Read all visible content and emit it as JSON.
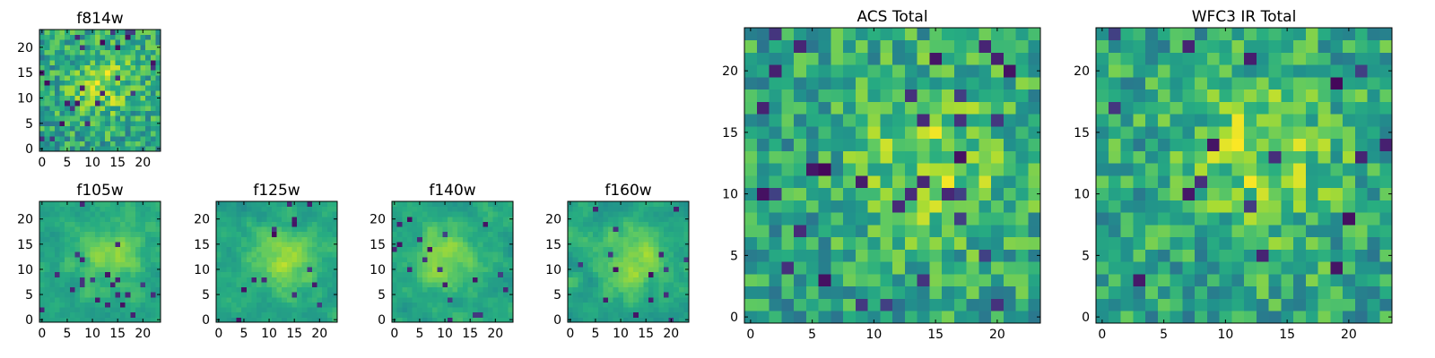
{
  "figure": {
    "background": "#ffffff",
    "colormap": [
      "#440154",
      "#3b528b",
      "#21918c",
      "#5ec962",
      "#fde725"
    ]
  },
  "chart_data": [
    {
      "id": "f814w",
      "type": "heatmap",
      "title": "f814w",
      "xlim": [
        0,
        24
      ],
      "ylim": [
        0,
        24
      ],
      "grid_size": [
        24,
        24
      ],
      "xticks": [
        0,
        5,
        10,
        15,
        20
      ],
      "yticks": [
        0,
        5,
        10,
        15,
        20
      ],
      "texture_seed": 11,
      "hotspot": [
        12,
        13
      ],
      "smooth": 0.0,
      "dark_fraction": 0.05
    },
    {
      "id": "f105w",
      "type": "heatmap",
      "title": "f105w",
      "xlim": [
        0,
        24
      ],
      "ylim": [
        0,
        24
      ],
      "grid_size": [
        24,
        24
      ],
      "xticks": [
        0,
        5,
        10,
        15,
        20
      ],
      "yticks": [
        0,
        5,
        10,
        15,
        20
      ],
      "texture_seed": 23,
      "hotspot": [
        14,
        13
      ],
      "smooth": 0.6,
      "dark_fraction": 0.03
    },
    {
      "id": "f125w",
      "type": "heatmap",
      "title": "f125w",
      "xlim": [
        0,
        24
      ],
      "ylim": [
        0,
        24
      ],
      "grid_size": [
        24,
        24
      ],
      "xticks": [
        0,
        5,
        10,
        15,
        20
      ],
      "yticks": [
        0,
        5,
        10,
        15,
        20
      ],
      "texture_seed": 37,
      "hotspot": [
        13,
        12
      ],
      "smooth": 0.6,
      "dark_fraction": 0.03
    },
    {
      "id": "f140w",
      "type": "heatmap",
      "title": "f140w",
      "xlim": [
        0,
        24
      ],
      "ylim": [
        0,
        24
      ],
      "grid_size": [
        24,
        24
      ],
      "xticks": [
        0,
        5,
        10,
        15,
        20
      ],
      "yticks": [
        0,
        5,
        10,
        15,
        20
      ],
      "texture_seed": 41,
      "hotspot": [
        10,
        12
      ],
      "smooth": 0.6,
      "dark_fraction": 0.03
    },
    {
      "id": "f160w",
      "type": "heatmap",
      "title": "f160w",
      "xlim": [
        0,
        24
      ],
      "ylim": [
        0,
        24
      ],
      "grid_size": [
        24,
        24
      ],
      "xticks": [
        0,
        5,
        10,
        15,
        20
      ],
      "yticks": [
        0,
        5,
        10,
        15,
        20
      ],
      "texture_seed": 53,
      "hotspot": [
        12,
        12
      ],
      "smooth": 0.6,
      "dark_fraction": 0.04
    },
    {
      "id": "acs",
      "type": "heatmap",
      "title": "ACS Total",
      "xlim": [
        0,
        24
      ],
      "ylim": [
        0,
        24
      ],
      "grid_size": [
        24,
        24
      ],
      "xticks": [
        0,
        5,
        10,
        15,
        20
      ],
      "yticks": [
        0,
        5,
        10,
        15,
        20
      ],
      "texture_seed": 67,
      "hotspot": [
        15,
        13
      ],
      "smooth": 0.0,
      "dark_fraction": 0.04
    },
    {
      "id": "wfc3",
      "type": "heatmap",
      "title": "WFC3 IR Total",
      "xlim": [
        0,
        24
      ],
      "ylim": [
        0,
        24
      ],
      "grid_size": [
        24,
        24
      ],
      "xticks": [
        0,
        5,
        10,
        15,
        20
      ],
      "yticks": [
        0,
        5,
        10,
        15,
        20
      ],
      "texture_seed": 79,
      "hotspot": [
        13,
        13
      ],
      "smooth": 0.0,
      "dark_fraction": 0.04
    }
  ]
}
